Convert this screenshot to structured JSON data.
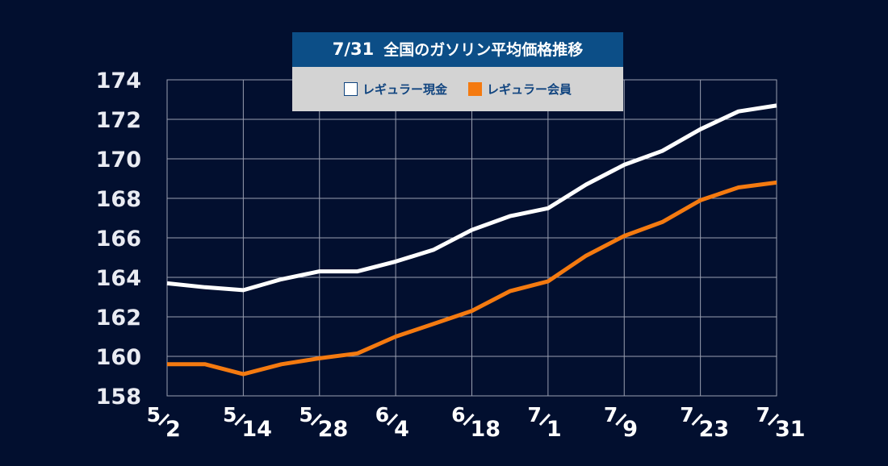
{
  "chart_data": {
    "type": "line",
    "title_date": "7/31",
    "title": "全国のガソリン平均価格推移",
    "xlabel": "",
    "ylabel": "",
    "ylim": [
      158,
      174
    ],
    "yticks": [
      158,
      160,
      162,
      164,
      166,
      168,
      170,
      172,
      174
    ],
    "x": [
      "5/2",
      "5/8",
      "5/14",
      "5/21",
      "5/28",
      "6/4a",
      "6/4",
      "6/11",
      "6/18",
      "6/25",
      "7/1",
      "7/9a",
      "7/9",
      "7/16",
      "7/23",
      "7/27",
      "7/31"
    ],
    "xticks": [
      {
        "num": "5",
        "den": "2"
      },
      {
        "num": "5",
        "den": "14"
      },
      {
        "num": "5",
        "den": "28"
      },
      {
        "num": "6",
        "den": "4"
      },
      {
        "num": "6",
        "den": "18"
      },
      {
        "num": "7",
        "den": "1"
      },
      {
        "num": "7",
        "den": "9"
      },
      {
        "num": "7",
        "den": "23"
      },
      {
        "num": "7",
        "den": "31"
      }
    ],
    "grid": true,
    "legend_position": "top-center",
    "series": [
      {
        "name": "レギュラー現金",
        "color": "#ffffff",
        "values": [
          163.7,
          163.5,
          163.35,
          163.9,
          164.3,
          164.3,
          164.8,
          165.4,
          166.4,
          167.1,
          167.5,
          168.7,
          169.7,
          170.4,
          171.5,
          172.4,
          172.7
        ]
      },
      {
        "name": "レギュラー会員",
        "color": "#f47a10",
        "values": [
          159.6,
          159.6,
          159.1,
          159.6,
          159.9,
          160.15,
          161.0,
          161.65,
          162.3,
          163.3,
          163.8,
          165.1,
          166.1,
          166.8,
          167.9,
          168.55,
          168.8
        ]
      }
    ]
  },
  "colors": {
    "background": "#020f2f",
    "title_bar": "#0c4e87",
    "legend_bg": "#d3d3d3",
    "legend_text": "#10447f",
    "grid": "#9a9fb0"
  }
}
